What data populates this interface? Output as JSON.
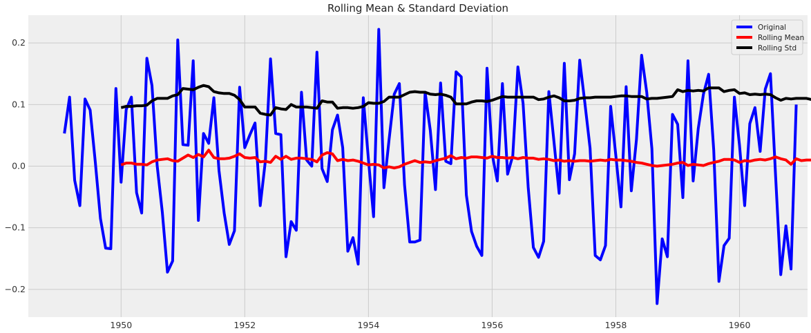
{
  "chart_data": {
    "type": "line",
    "title": "Rolling Mean & Standard Deviation",
    "xlabel": "",
    "ylabel": "",
    "xlim": [
      1948.5,
      1961.1
    ],
    "ylim": [
      -0.245,
      0.245
    ],
    "x_ticks": [
      1950,
      1952,
      1954,
      1956,
      1958,
      1960
    ],
    "x_tick_labels": [
      "1950",
      "1952",
      "1954",
      "1956",
      "1958",
      "1960"
    ],
    "y_ticks": [
      -0.2,
      -0.1,
      0.0,
      0.1,
      0.2
    ],
    "y_tick_labels": [
      "−0.2",
      "−0.1",
      "0.0",
      "0.1",
      "0.2"
    ],
    "grid": true,
    "legend_position": "top-right",
    "background": "#efefef",
    "colors": {
      "Original": "#0000ff",
      "Rolling Mean": "#ff0000",
      "Rolling Std": "#000000"
    },
    "series": [
      {
        "name": "Original",
        "x_start": 1949.0833,
        "x_step": 0.083333,
        "values": [
          0.053,
          0.112,
          -0.023,
          -0.064,
          0.109,
          0.091,
          0.006,
          -0.085,
          -0.133,
          -0.134,
          0.126,
          -0.026,
          0.092,
          0.112,
          -0.043,
          -0.076,
          0.175,
          0.131,
          0.001,
          -0.075,
          -0.172,
          -0.154,
          0.205,
          0.035,
          0.034,
          0.171,
          -0.088,
          0.053,
          0.037,
          0.111,
          -0.007,
          -0.076,
          -0.127,
          -0.105,
          0.128,
          0.03,
          0.051,
          0.07,
          -0.064,
          0.009,
          0.174,
          0.053,
          0.051,
          -0.147,
          -0.09,
          -0.104,
          0.12,
          0.01,
          0.0,
          0.185,
          -0.004,
          -0.025,
          0.059,
          0.083,
          0.03,
          -0.138,
          -0.116,
          -0.159,
          0.111,
          0.01,
          -0.082,
          0.222,
          -0.035,
          0.043,
          0.117,
          0.134,
          -0.03,
          -0.123,
          -0.123,
          -0.12,
          0.12,
          0.058,
          -0.038,
          0.135,
          0.008,
          0.004,
          0.153,
          0.145,
          -0.047,
          -0.106,
          -0.13,
          -0.145,
          0.159,
          0.02,
          -0.024,
          0.134,
          -0.013,
          0.017,
          0.161,
          0.102,
          -0.034,
          -0.132,
          -0.148,
          -0.122,
          0.121,
          0.04,
          -0.044,
          0.167,
          -0.022,
          0.02,
          0.172,
          0.102,
          0.029,
          -0.145,
          -0.152,
          -0.129,
          0.097,
          0.017,
          -0.066,
          0.129,
          -0.04,
          0.043,
          0.18,
          0.12,
          0.028,
          -0.223,
          -0.118,
          -0.147,
          0.084,
          0.068,
          -0.051,
          0.171,
          -0.024,
          0.061,
          0.117,
          0.149,
          0.026,
          -0.187,
          -0.129,
          -0.117,
          0.112,
          0.034,
          -0.064,
          0.069,
          0.095,
          0.024,
          0.125,
          0.15,
          -0.015,
          -0.176,
          -0.097,
          -0.167,
          0.1
        ]
      },
      {
        "name": "Rolling Mean",
        "x_start": 1950.0,
        "x_step": 0.083333,
        "values": [
          0.002,
          0.005,
          0.005,
          0.003,
          0.003,
          0.002,
          0.007,
          0.01,
          0.011,
          0.012,
          0.009,
          0.008,
          0.013,
          0.018,
          0.014,
          0.019,
          0.015,
          0.026,
          0.014,
          0.012,
          0.012,
          0.013,
          0.016,
          0.02,
          0.014,
          0.013,
          0.014,
          0.007,
          0.008,
          0.006,
          0.016,
          0.011,
          0.016,
          0.011,
          0.013,
          0.013,
          0.012,
          0.011,
          0.007,
          0.018,
          0.022,
          0.02,
          0.009,
          0.011,
          0.009,
          0.01,
          0.008,
          0.005,
          0.002,
          0.003,
          0.002,
          -0.003,
          -0.001,
          -0.003,
          -0.001,
          0.003,
          0.006,
          0.009,
          0.006,
          0.007,
          0.006,
          0.009,
          0.011,
          0.013,
          0.017,
          0.012,
          0.014,
          0.013,
          0.015,
          0.015,
          0.014,
          0.013,
          0.016,
          0.014,
          0.014,
          0.013,
          0.014,
          0.012,
          0.014,
          0.013,
          0.013,
          0.011,
          0.012,
          0.011,
          0.009,
          0.01,
          0.008,
          0.009,
          0.008,
          0.009,
          0.009,
          0.008,
          0.009,
          0.01,
          0.009,
          0.011,
          0.01,
          0.01,
          0.009,
          0.008,
          0.006,
          0.005,
          0.003,
          0.001,
          0.0,
          0.001,
          0.002,
          0.003,
          0.005,
          0.006,
          0.001,
          0.003,
          0.002,
          0.001,
          0.004,
          0.006,
          0.008,
          0.011,
          0.011,
          0.01,
          0.006,
          0.009,
          0.008,
          0.01,
          0.011,
          0.01,
          0.012,
          0.015,
          0.012,
          0.01,
          0.003,
          0.012,
          0.009,
          0.01,
          0.01,
          0.01,
          0.007,
          0.008,
          0.01,
          0.006,
          0.005
        ]
      },
      {
        "name": "Rolling Std",
        "x_start": 1950.0,
        "x_step": 0.083333,
        "values": [
          0.095,
          0.097,
          0.097,
          0.098,
          0.098,
          0.099,
          0.106,
          0.11,
          0.11,
          0.11,
          0.114,
          0.116,
          0.126,
          0.125,
          0.124,
          0.128,
          0.131,
          0.129,
          0.121,
          0.119,
          0.118,
          0.118,
          0.115,
          0.108,
          0.096,
          0.096,
          0.096,
          0.086,
          0.084,
          0.083,
          0.095,
          0.093,
          0.092,
          0.1,
          0.096,
          0.096,
          0.096,
          0.095,
          0.094,
          0.106,
          0.104,
          0.104,
          0.094,
          0.095,
          0.095,
          0.094,
          0.095,
          0.097,
          0.103,
          0.102,
          0.102,
          0.105,
          0.112,
          0.112,
          0.112,
          0.116,
          0.12,
          0.121,
          0.12,
          0.12,
          0.117,
          0.116,
          0.117,
          0.115,
          0.112,
          0.101,
          0.101,
          0.101,
          0.104,
          0.106,
          0.106,
          0.105,
          0.107,
          0.11,
          0.113,
          0.112,
          0.112,
          0.112,
          0.112,
          0.112,
          0.112,
          0.108,
          0.109,
          0.112,
          0.114,
          0.111,
          0.106,
          0.106,
          0.107,
          0.11,
          0.111,
          0.111,
          0.112,
          0.112,
          0.112,
          0.112,
          0.113,
          0.114,
          0.114,
          0.113,
          0.113,
          0.113,
          0.109,
          0.11,
          0.11,
          0.111,
          0.112,
          0.113,
          0.124,
          0.121,
          0.123,
          0.122,
          0.123,
          0.122,
          0.127,
          0.127,
          0.127,
          0.121,
          0.123,
          0.124,
          0.118,
          0.119,
          0.116,
          0.117,
          0.116,
          0.117,
          0.116,
          0.111,
          0.107,
          0.11,
          0.109,
          0.11,
          0.11,
          0.11,
          0.108,
          0.105,
          0.112,
          0.111
        ]
      }
    ]
  }
}
